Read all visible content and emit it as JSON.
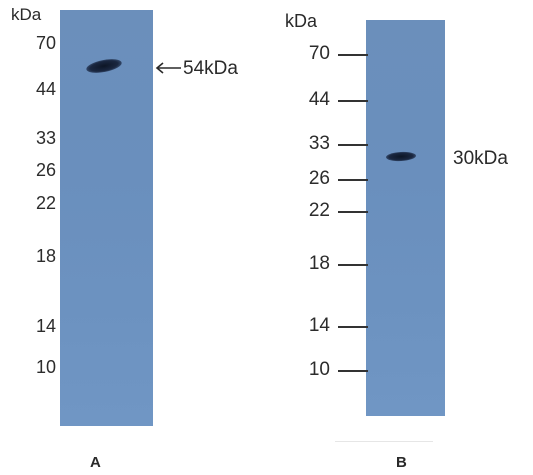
{
  "panels": [
    {
      "letter": "A",
      "unit_label": "kDa",
      "markers": [
        "70",
        "44",
        "33",
        "26",
        "22",
        "18",
        "14",
        "10"
      ],
      "band_label": "54kDa",
      "arrow": "left-arrow-icon"
    },
    {
      "letter": "B",
      "unit_label": "kDa",
      "markers": [
        "70",
        "44",
        "33",
        "26",
        "22",
        "18",
        "14",
        "10"
      ],
      "band_label": "30kDa"
    }
  ],
  "colors": {
    "membrane": "#6a8fbd",
    "band": "#15203a",
    "text": "#2c2c2c"
  }
}
